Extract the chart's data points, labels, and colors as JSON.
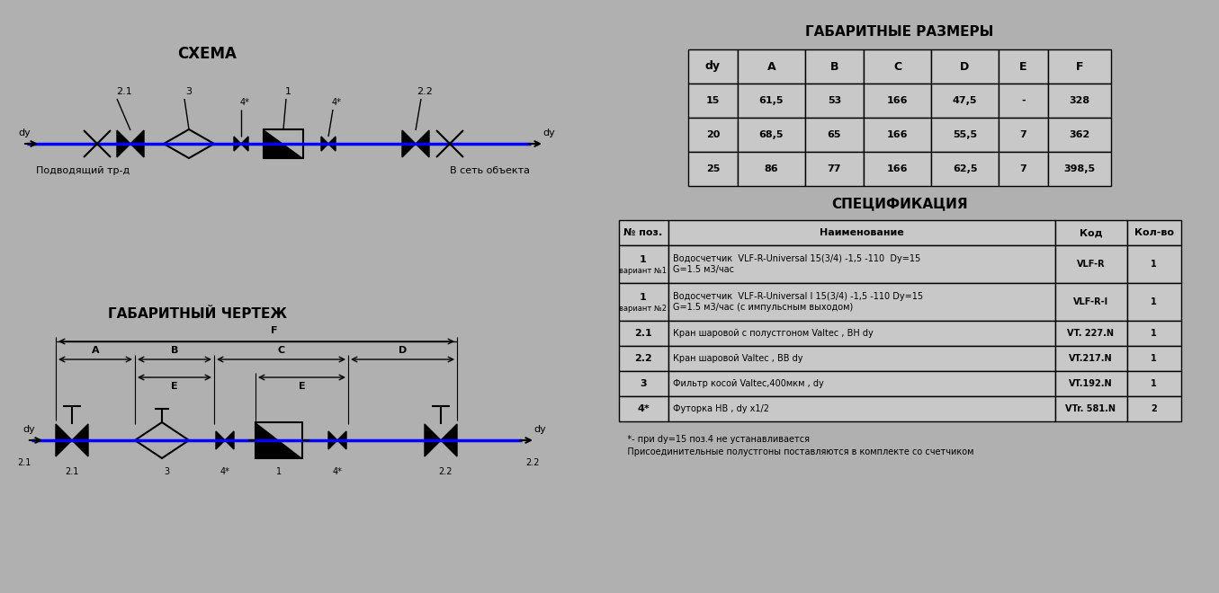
{
  "bg_color": "#b0b0b0",
  "title_schema": "СХЕМА",
  "title_drawing": "ГАБАРИТНЫЙ ЧЕРТЕЖ",
  "title_sizes": "ГАБАРИТНЫЕ РАЗМЕРЫ",
  "title_spec": "СПЕЦИФИКАЦИЯ",
  "pipe_color": "#0000ff",
  "line_color": "#000000",
  "text_color": "#000000",
  "label_podv": "Подводящий тр-д",
  "label_set": "В сеть объекта",
  "label_dy_left": "dy",
  "label_dy_right": "dy",
  "sizes_headers": [
    "dy",
    "A",
    "B",
    "C",
    "D",
    "E",
    "F"
  ],
  "sizes_rows": [
    [
      "15",
      "61,5",
      "53",
      "166",
      "47,5",
      "-",
      "328"
    ],
    [
      "20",
      "68,5",
      "65",
      "166",
      "55,5",
      "7",
      "362"
    ],
    [
      "25",
      "86",
      "77",
      "166",
      "62,5",
      "7",
      "398,5"
    ]
  ],
  "spec_headers": [
    "№ поз.",
    "Наименование",
    "Код",
    "Кол-во"
  ],
  "spec_rows": [
    [
      "1\nвариант №1",
      "Водосчетчик  VLF-R-Universal 15(3/4) -1,5 -110  Dy=15\nG=1.5 м3/час",
      "VLF-R",
      "1"
    ],
    [
      "1\nвариант №2",
      "Водосчетчик  VLF-R-Universal I 15(3/4) -1,5 -110 Dy=15\nG=1.5 м3/час (с импульсным выходом)",
      "VLF-R-I",
      "1"
    ],
    [
      "2.1",
      "Кран шаровой с полустгоном Valtec , ВН dy",
      "VT. 227.N",
      "1"
    ],
    [
      "2.2",
      "Кран шаровой Valtec , ВВ dy",
      "VT.217.N",
      "1"
    ],
    [
      "3",
      "Фильтр косой Valtec,400мкм , dy",
      "VT.192.N",
      "1"
    ],
    [
      "4*",
      "Футорка НВ , dy x1/2",
      "VTr. 581.N",
      "2"
    ]
  ],
  "footnote1": "   *- при dy=15 поз.4 не устанавливается",
  "footnote2": "   Присоединительные полустгоны поставляются в комплекте со счетчиком"
}
